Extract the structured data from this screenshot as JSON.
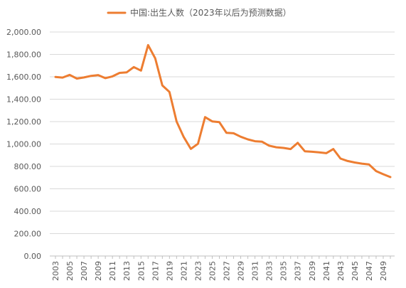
{
  "chart_data": {
    "type": "line",
    "title": "",
    "xlabel": "",
    "ylabel": "",
    "legend": {
      "position": "top",
      "label": "中国:出生人数（2023年以后为预测数据）"
    },
    "ylim": [
      0,
      2000
    ],
    "yticks": [
      "0.00",
      "200.00",
      "400.00",
      "600.00",
      "800.00",
      "1,000.00",
      "1,200.00",
      "1,400.00",
      "1,600.00",
      "1,800.00",
      "2,000.00"
    ],
    "ytick_values": [
      0,
      200,
      400,
      600,
      800,
      1000,
      1200,
      1400,
      1600,
      1800,
      2000
    ],
    "xtick_labels": [
      "2003",
      "2005",
      "2007",
      "2009",
      "2011",
      "2013",
      "2015",
      "2017",
      "2019",
      "2021",
      "2023",
      "2025",
      "2027",
      "2029",
      "2031",
      "2033",
      "2035",
      "2037",
      "2039",
      "2041",
      "2043",
      "2045",
      "2047",
      "2049"
    ],
    "grid": "horizontal",
    "color": "#ED7D31",
    "x": [
      2003,
      2004,
      2005,
      2006,
      2007,
      2008,
      2009,
      2010,
      2011,
      2012,
      2013,
      2014,
      2015,
      2016,
      2017,
      2018,
      2019,
      2020,
      2021,
      2022,
      2023,
      2024,
      2025,
      2026,
      2027,
      2028,
      2029,
      2030,
      2031,
      2032,
      2033,
      2034,
      2035,
      2036,
      2037,
      2038,
      2039,
      2040,
      2041,
      2042,
      2043,
      2044,
      2045,
      2046,
      2047,
      2048,
      2049,
      2050
    ],
    "series": [
      {
        "name": "中国:出生人数（2023年以后为预测数据）",
        "values": [
          1599,
          1593,
          1617,
          1584,
          1594,
          1608,
          1615,
          1588,
          1604,
          1635,
          1640,
          1687,
          1655,
          1883,
          1765,
          1523,
          1465,
          1200,
          1062,
          956,
          1002,
          1240,
          1202,
          1195,
          1100,
          1096,
          1065,
          1041,
          1025,
          1020,
          985,
          971,
          965,
          955,
          1010,
          935,
          931,
          926,
          918,
          955,
          870,
          848,
          835,
          825,
          818,
          758,
          730,
          705
        ]
      }
    ]
  }
}
